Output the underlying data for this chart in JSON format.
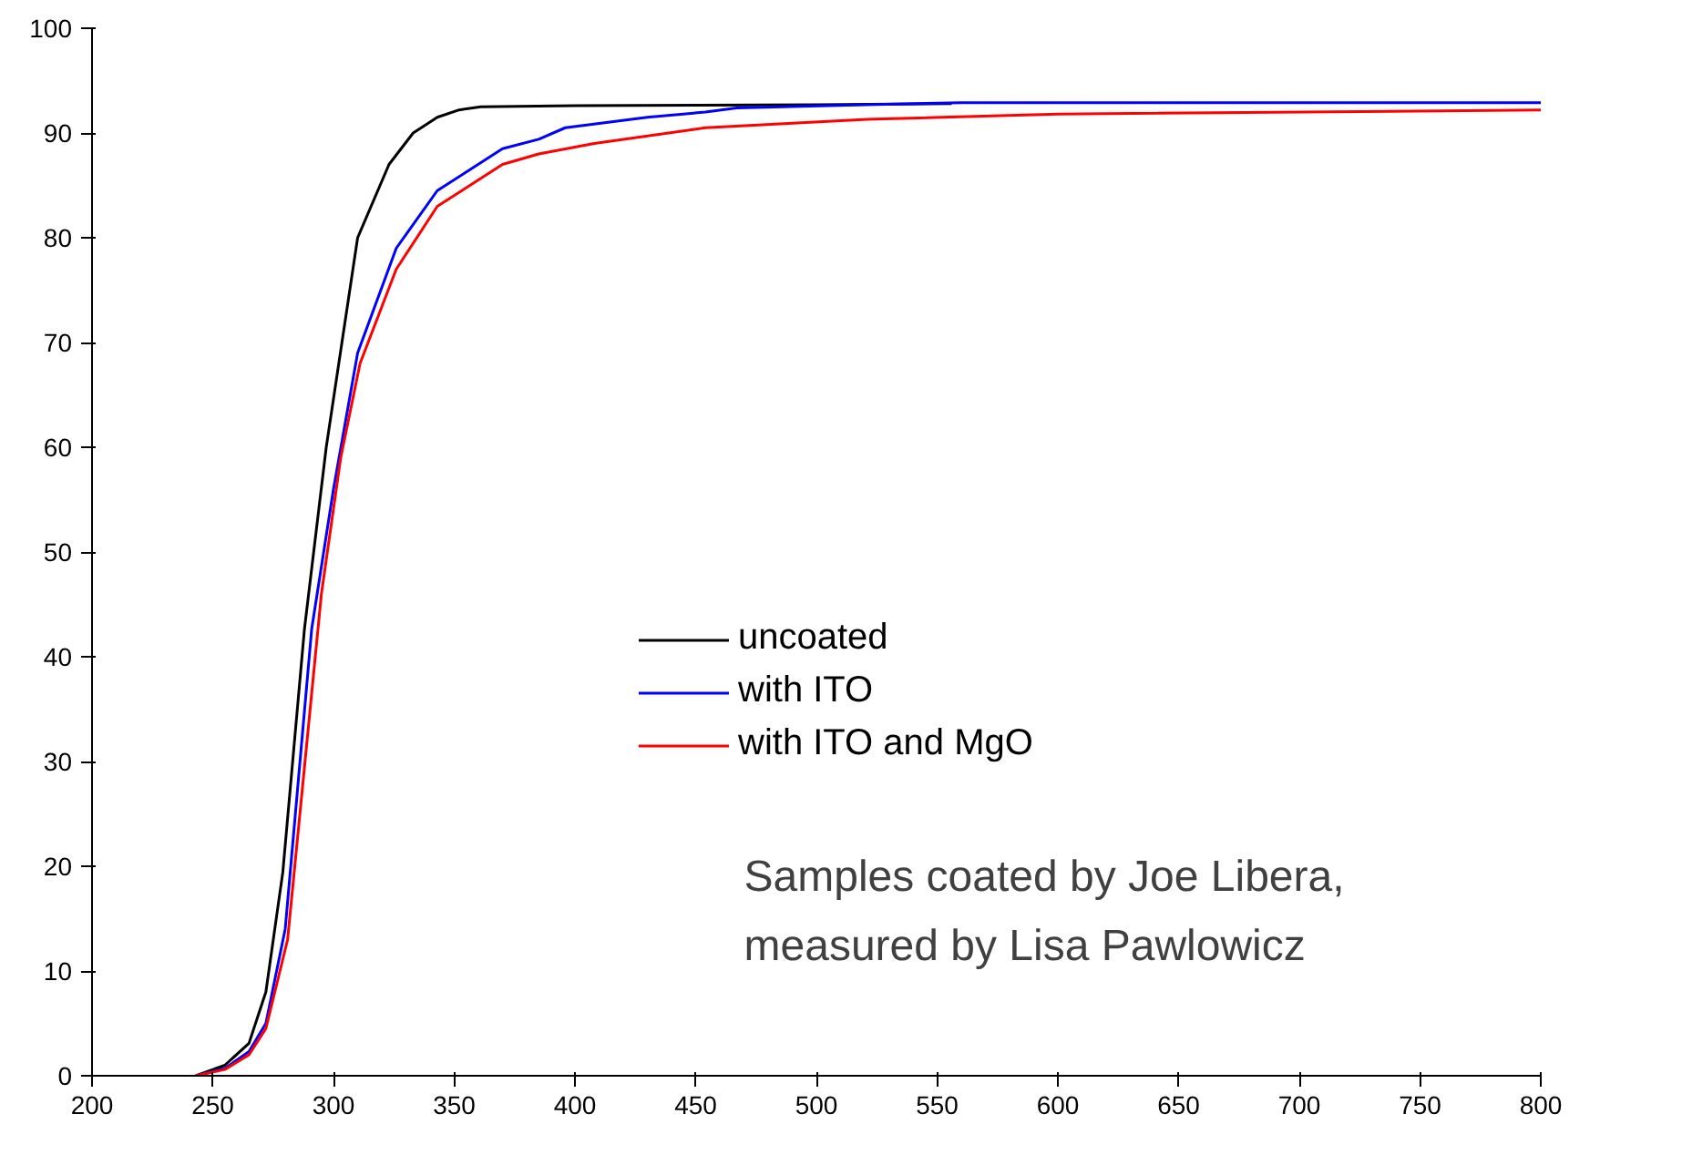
{
  "chart_data": {
    "type": "line",
    "xlim": [
      200,
      800
    ],
    "ylim": [
      0,
      100
    ],
    "xticks": [
      200,
      250,
      300,
      350,
      400,
      450,
      500,
      550,
      600,
      650,
      700,
      750,
      800
    ],
    "yticks": [
      0,
      10,
      20,
      30,
      40,
      50,
      60,
      70,
      80,
      90,
      100
    ],
    "grid": false,
    "legend": "bottom right",
    "line_style": "solid",
    "marker": "none",
    "annotations": [
      "Samples coated by Joe Libera,\nmeasured by Lisa Pawlowicz"
    ],
    "series": [
      {
        "name": "uncoated",
        "color": "#000000",
        "x": [
          243,
          255,
          265,
          272,
          279,
          288,
          297,
          310,
          323,
          333,
          343,
          352,
          361,
          400,
          500,
          556
        ],
        "values": [
          0,
          1,
          3.1,
          8,
          19.4,
          42.7,
          60,
          80,
          87,
          90,
          91.5,
          92.2,
          92.5,
          92.6,
          92.7,
          92.8
        ]
      },
      {
        "name": "with ITO",
        "color": "#0000ff",
        "x": [
          243,
          255,
          265,
          272,
          280,
          291,
          300,
          310,
          326,
          343,
          370,
          385,
          396,
          430,
          454,
          467,
          520,
          560,
          800
        ],
        "values": [
          0,
          0.7,
          2.3,
          5,
          14,
          42.7,
          56,
          69,
          79,
          84.5,
          88.5,
          89.4,
          90.5,
          91.5,
          92,
          92.4,
          92.7,
          92.9,
          92.9
        ]
      },
      {
        "name": "with ITO and MgO",
        "color": "#ff0000",
        "x": [
          243,
          255,
          265,
          272,
          281,
          295,
          303,
          311,
          326,
          343,
          370,
          385,
          408,
          454,
          521,
          600,
          800
        ],
        "values": [
          0,
          0.6,
          2,
          4.5,
          13,
          46,
          59,
          68,
          77,
          83,
          87,
          88,
          89,
          90.5,
          91.3,
          91.8,
          92.2
        ]
      }
    ]
  }
}
